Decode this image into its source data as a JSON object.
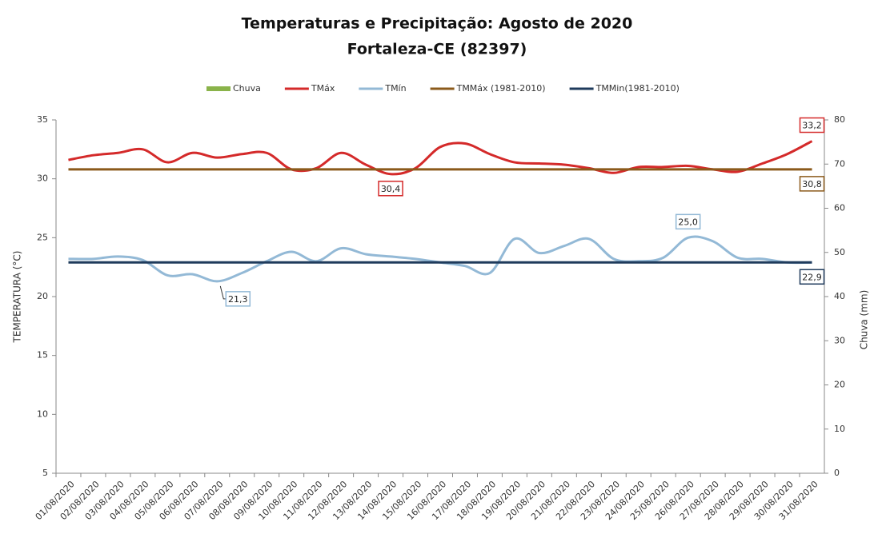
{
  "chart_data": {
    "type": "line",
    "title": "Temperaturas e Precipitação:  Agosto de 2020",
    "subtitle": "Fortaleza-CE (82397)",
    "y_label": "TEMPERATURA (°C)",
    "y2_label": "Chuva (mm)",
    "categories": [
      "01/08/2020",
      "02/08/2020",
      "03/08/2020",
      "04/08/2020",
      "05/08/2020",
      "06/08/2020",
      "07/08/2020",
      "08/08/2020",
      "09/08/2020",
      "10/08/2020",
      "11/08/2020",
      "12/08/2020",
      "13/08/2020",
      "14/08/2020",
      "15/08/2020",
      "16/08/2020",
      "17/08/2020",
      "18/08/2020",
      "19/08/2020",
      "20/08/2020",
      "21/08/2020",
      "22/08/2020",
      "23/08/2020",
      "24/08/2020",
      "25/08/2020",
      "26/08/2020",
      "27/08/2020",
      "28/08/2020",
      "29/08/2020",
      "30/08/2020",
      "31/08/2020"
    ],
    "series": [
      {
        "name": "Chuva",
        "color": "#8ab34a",
        "kind": "bar",
        "axis": "y2",
        "values": [
          0,
          0,
          0,
          0,
          0,
          0,
          0,
          0,
          0,
          0,
          0,
          0,
          0,
          0,
          0,
          0,
          0,
          0,
          0,
          0,
          0,
          0,
          0,
          0,
          0,
          0,
          0,
          0,
          0,
          0,
          0
        ]
      },
      {
        "name": "TMáx",
        "color": "#d42a2a",
        "values": [
          31.6,
          32.0,
          32.2,
          32.5,
          31.4,
          32.2,
          31.8,
          32.1,
          32.2,
          30.8,
          30.9,
          32.2,
          31.2,
          30.4,
          30.9,
          32.7,
          33.0,
          32.1,
          31.4,
          31.3,
          31.2,
          30.9,
          30.5,
          31.0,
          31.0,
          31.1,
          30.8,
          30.6,
          31.3,
          32.1,
          33.2
        ],
        "value_labels": [
          null,
          null,
          null,
          null,
          null,
          null,
          null,
          null,
          null,
          null,
          null,
          null,
          null,
          "30,4",
          null,
          null,
          null,
          null,
          null,
          null,
          null,
          null,
          null,
          null,
          null,
          null,
          null,
          null,
          null,
          null,
          "33,2"
        ]
      },
      {
        "name": "TMín",
        "color": "#93b9d6",
        "values": [
          23.2,
          23.2,
          23.4,
          23.1,
          21.8,
          21.9,
          21.3,
          22.0,
          23.0,
          23.8,
          23.0,
          24.1,
          23.6,
          23.4,
          23.2,
          22.9,
          22.6,
          22.0,
          24.9,
          23.7,
          24.3,
          24.9,
          23.2,
          23.0,
          23.3,
          25.0,
          24.7,
          23.3,
          23.2,
          22.9,
          22.9
        ],
        "value_labels": [
          null,
          null,
          null,
          null,
          null,
          null,
          "21,3",
          null,
          null,
          null,
          null,
          null,
          null,
          null,
          null,
          null,
          null,
          null,
          null,
          null,
          null,
          null,
          null,
          null,
          null,
          "25,0",
          null,
          null,
          null,
          null,
          null
        ]
      },
      {
        "name": "TMMáx (1981-2010)",
        "color": "#8b5a1b",
        "values": [
          30.8,
          30.8,
          30.8,
          30.8,
          30.8,
          30.8,
          30.8,
          30.8,
          30.8,
          30.8,
          30.8,
          30.8,
          30.8,
          30.8,
          30.8,
          30.8,
          30.8,
          30.8,
          30.8,
          30.8,
          30.8,
          30.8,
          30.8,
          30.8,
          30.8,
          30.8,
          30.8,
          30.8,
          30.8,
          30.8,
          30.8
        ],
        "value_labels": [
          null,
          null,
          null,
          null,
          null,
          null,
          null,
          null,
          null,
          null,
          null,
          null,
          null,
          null,
          null,
          null,
          null,
          null,
          null,
          null,
          null,
          null,
          null,
          null,
          null,
          null,
          null,
          null,
          null,
          null,
          "30,8"
        ]
      },
      {
        "name": "TMMin(1981-2010)",
        "color": "#1f3b5c",
        "values": [
          22.9,
          22.9,
          22.9,
          22.9,
          22.9,
          22.9,
          22.9,
          22.9,
          22.9,
          22.9,
          22.9,
          22.9,
          22.9,
          22.9,
          22.9,
          22.9,
          22.9,
          22.9,
          22.9,
          22.9,
          22.9,
          22.9,
          22.9,
          22.9,
          22.9,
          22.9,
          22.9,
          22.9,
          22.9,
          22.9,
          22.9
        ],
        "value_labels": [
          null,
          null,
          null,
          null,
          null,
          null,
          null,
          null,
          null,
          null,
          null,
          null,
          null,
          null,
          null,
          null,
          null,
          null,
          null,
          null,
          null,
          null,
          null,
          null,
          null,
          null,
          null,
          null,
          null,
          null,
          "22,9"
        ]
      }
    ],
    "ylim": [
      5,
      35
    ],
    "yticks": [
      5,
      10,
      15,
      20,
      25,
      30,
      35
    ],
    "y2lim": [
      0,
      80
    ],
    "y2ticks": [
      0,
      10,
      20,
      30,
      40,
      50,
      60,
      70,
      80
    ],
    "grid": false,
    "legend": "top"
  }
}
